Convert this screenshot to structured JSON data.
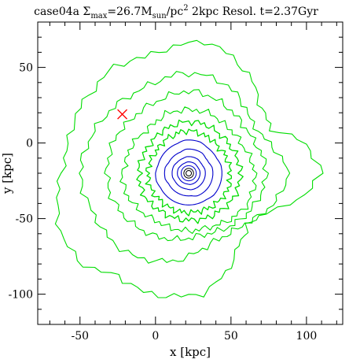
{
  "chart_data": {
    "type": "contour",
    "title": {
      "prefix": "case04a Σ",
      "sub1": "max",
      "mid1": "=26.7M",
      "sub2": "sun",
      "mid2": "/pc",
      "sup": "2",
      "suffix": " 2kpc Resol. t=2.37Gyr"
    },
    "xlabel": "x [kpc]",
    "ylabel": "y [kpc]",
    "xlim": [
      -78,
      124
    ],
    "ylim": [
      -120,
      80
    ],
    "xticks": [
      -50,
      0,
      50,
      100
    ],
    "yticks": [
      -100,
      -50,
      0,
      50
    ],
    "center": [
      22,
      -20
    ],
    "marker": {
      "x": -22,
      "y": 19,
      "symbol": "×",
      "color": "#ff0000"
    },
    "contour_colors": {
      "outer": "#00dd00",
      "inner": "#0000cc",
      "core": "#000000"
    },
    "contours": [
      {
        "level": "green-1",
        "color": "#00dd00",
        "radii": [
          88,
          80,
          62,
          64,
          74,
          82,
          88,
          84,
          82,
          86,
          84,
          84,
          82,
          84,
          90,
          94,
          92,
          82,
          84,
          82,
          80,
          70,
          58,
          52,
          56,
          74
        ],
        "stroke": 1.1
      },
      {
        "level": "green-2",
        "color": "#00dd00",
        "radii": [
          66,
          60,
          54,
          54,
          60,
          64,
          66,
          66,
          64,
          64,
          66,
          68,
          70,
          72,
          70,
          68,
          68,
          66,
          62,
          58,
          52,
          48,
          48,
          50,
          56,
          62
        ],
        "stroke": 1.1
      },
      {
        "level": "green-3",
        "color": "#00dd00",
        "radii": [
          52,
          50,
          48,
          48,
          50,
          52,
          54,
          54,
          52,
          52,
          52,
          54,
          54,
          54,
          54,
          52,
          50,
          48,
          46,
          44,
          42,
          42,
          44,
          46,
          48,
          50
        ],
        "stroke": 1.1
      },
      {
        "level": "green-4",
        "color": "#00dd00",
        "radii": [
          44,
          42,
          40,
          40,
          40,
          42,
          42,
          42,
          42,
          40,
          40,
          42,
          42,
          44,
          44,
          42,
          40,
          38,
          38,
          38,
          38,
          38,
          40,
          42,
          44,
          44
        ],
        "stroke": 1.1
      },
      {
        "level": "green-5",
        "color": "#00dd00",
        "radii": [
          34,
          34,
          33,
          33,
          33,
          34,
          34,
          34,
          33,
          33,
          32,
          32,
          33,
          33,
          33,
          33,
          32,
          31,
          31,
          31,
          31,
          32,
          32,
          33,
          34,
          34
        ],
        "stroke": 1.3
      },
      {
        "level": "green-6",
        "color": "#00dd00",
        "radii": [
          28,
          27,
          27,
          26,
          27,
          27,
          28,
          28,
          27,
          27,
          26,
          26,
          27,
          27,
          27,
          27,
          26,
          26,
          26,
          26,
          26,
          26,
          27,
          27,
          28,
          28
        ],
        "stroke": 1.3
      },
      {
        "level": "blue-1",
        "color": "#0000cc",
        "radii": [
          22,
          22,
          21,
          21,
          21,
          22,
          22,
          22,
          21,
          21,
          21,
          21,
          21,
          22,
          22,
          21,
          21,
          21,
          21,
          21,
          21,
          21,
          21,
          22,
          22,
          22
        ],
        "stroke": 1.1
      },
      {
        "level": "blue-2",
        "color": "#0000cc",
        "radii": [
          16,
          16,
          15,
          15,
          16,
          16,
          16,
          16,
          15,
          15,
          15,
          15,
          16,
          16,
          16,
          15,
          15,
          15,
          15,
          15,
          15,
          16,
          16,
          16,
          16,
          16
        ],
        "stroke": 1.1
      },
      {
        "level": "blue-3",
        "color": "#0000cc",
        "radii": [
          11,
          11,
          10.5,
          10.5,
          11,
          11,
          11,
          11,
          10.5,
          10.5,
          10.5,
          11,
          11,
          11,
          11,
          10.5,
          10.5,
          10.5,
          10.5,
          10.5,
          11,
          11,
          11,
          11,
          11,
          11
        ],
        "stroke": 1.1
      },
      {
        "level": "blue-4",
        "color": "#0000cc",
        "radii": [
          7.5,
          7.5,
          7.2,
          7.2,
          7.5,
          7.5,
          7.5,
          7.5,
          7.2,
          7.2,
          7.2,
          7.5,
          7.5,
          7.5,
          7.5,
          7.2,
          7.2,
          7.2,
          7.2,
          7.2,
          7.5,
          7.5,
          7.5,
          7.5,
          7.5,
          7.5
        ],
        "stroke": 1.1
      },
      {
        "level": "blue-5",
        "color": "#0000cc",
        "radii": [
          5,
          5,
          5,
          5,
          5,
          5,
          5,
          5,
          5,
          5,
          5,
          5,
          5,
          5,
          5,
          5,
          5,
          5,
          5,
          5,
          5,
          5,
          5,
          5,
          5,
          5
        ],
        "stroke": 1.0
      },
      {
        "level": "core-1",
        "color": "#000000",
        "radii": [
          3.2,
          3.2,
          3.2,
          3.2,
          3.2,
          3.2,
          3.2,
          3.2,
          3.2,
          3.2,
          3.2,
          3.2,
          3.2,
          3.2,
          3.2,
          3.2,
          3.2,
          3.2,
          3.2,
          3.2,
          3.2,
          3.2,
          3.2,
          3.2,
          3.2,
          3.2
        ],
        "stroke": 1.0
      },
      {
        "level": "core-2",
        "color": "#000000",
        "radii": [
          1.8,
          1.8,
          1.8,
          1.8,
          1.8,
          1.8,
          1.8,
          1.8,
          1.8,
          1.8,
          1.8,
          1.8,
          1.8,
          1.8,
          1.8,
          1.8,
          1.8,
          1.8,
          1.8,
          1.8,
          1.8,
          1.8,
          1.8,
          1.8,
          1.8,
          1.8
        ],
        "stroke": 1.0
      }
    ]
  }
}
